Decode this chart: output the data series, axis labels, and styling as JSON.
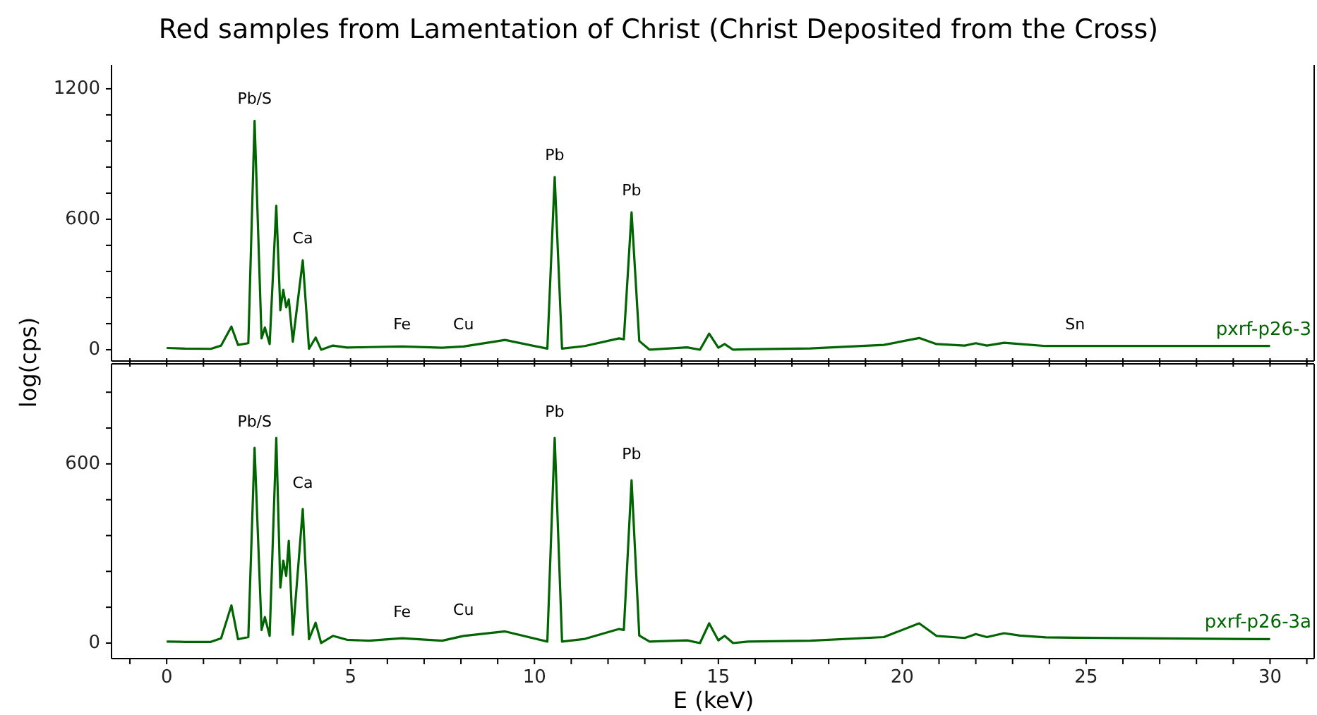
{
  "chart_data": [
    {
      "type": "line",
      "title": "Red samples from Lamentation of Christ (Christ Deposited from the Cross)",
      "ylabel": "log(cps)",
      "tick_labels": "y",
      "xlim": [
        -1.5,
        31.2
      ],
      "ylim": [
        -52,
        1310
      ],
      "xticks": [
        {
          "value": -1,
          "label": null
        },
        0,
        {
          "value": 1,
          "label": null
        },
        {
          "value": 2,
          "label": null
        },
        {
          "value": 3,
          "label": null
        },
        {
          "value": 4,
          "label": null
        },
        5,
        {
          "value": 6,
          "label": null
        },
        {
          "value": 7,
          "label": null
        },
        {
          "value": 8,
          "label": null
        },
        {
          "value": 9,
          "label": null
        },
        10,
        {
          "value": 11,
          "label": null
        },
        {
          "value": 12,
          "label": null
        },
        {
          "value": 13,
          "label": null
        },
        {
          "value": 14,
          "label": null
        },
        15,
        {
          "value": 16,
          "label": null
        },
        {
          "value": 17,
          "label": null
        },
        {
          "value": 18,
          "label": null
        },
        {
          "value": 19,
          "label": null
        },
        20,
        {
          "value": 21,
          "label": null
        },
        {
          "value": 22,
          "label": null
        },
        {
          "value": 23,
          "label": null
        },
        {
          "value": 24,
          "label": null
        },
        25,
        {
          "value": 26,
          "label": null
        },
        {
          "value": 27,
          "label": null
        },
        {
          "value": 28,
          "label": null
        },
        {
          "value": 29,
          "label": null
        },
        30,
        {
          "value": 31,
          "label": null
        }
      ],
      "yticks": [
        0,
        {
          "value": 120,
          "label": null
        },
        {
          "value": 240,
          "label": null
        },
        {
          "value": 360,
          "label": null
        },
        {
          "value": 480,
          "label": null
        },
        600,
        {
          "value": 720,
          "label": null
        },
        {
          "value": 840,
          "label": null
        },
        {
          "value": 960,
          "label": null
        },
        {
          "value": 1080,
          "label": null
        },
        1200
      ],
      "x": [
        0,
        0.5,
        1.2,
        1.48,
        1.76,
        1.94,
        2.22,
        2.39,
        2.58,
        2.67,
        2.8,
        2.98,
        3.09,
        3.17,
        3.25,
        3.32,
        3.43,
        3.7,
        3.87,
        4.05,
        4.2,
        4.52,
        4.9,
        5.5,
        6.4,
        7.49,
        8.07,
        9.2,
        10.35,
        10.55,
        10.75,
        11.37,
        12.3,
        12.43,
        12.64,
        12.85,
        13.13,
        14.15,
        14.5,
        14.75,
        15.0,
        15.17,
        15.4,
        15.8,
        17.5,
        19.5,
        20.46,
        20.93,
        21.7,
        22.0,
        22.3,
        22.77,
        23.2,
        23.9,
        24.7,
        25.8,
        30.0
      ],
      "series": [
        {
          "name": "pxrf-p26-3",
          "color": "#006400",
          "values": [
            8,
            5,
            4,
            19,
            106,
            22,
            30,
            1053,
            52,
            102,
            26,
            662,
            182,
            275,
            195,
            231,
            37,
            411,
            4,
            56,
            0,
            19,
            10,
            12,
            15,
            9,
            15,
            45,
            5,
            794,
            5,
            17,
            52,
            48,
            632,
            40,
            0,
            11,
            0,
            74,
            9,
            26,
            0,
            2,
            6,
            22,
            54,
            26,
            19,
            30,
            19,
            32,
            26,
            17,
            17,
            17,
            17
          ]
        }
      ],
      "annotations": [
        {
          "text": "Pb/S",
          "x": 2.39,
          "y": 1053
        },
        {
          "text": "Ca",
          "x": 3.7,
          "y": 411
        },
        {
          "text": "Fe",
          "x": 6.4,
          "y": 15
        },
        {
          "text": "Cu",
          "x": 8.07,
          "y": 15
        },
        {
          "text": "Pb",
          "x": 10.55,
          "y": 794
        },
        {
          "text": "Pb",
          "x": 12.64,
          "y": 632
        },
        {
          "text": "Sn",
          "x": 24.7,
          "y": 17
        }
      ]
    },
    {
      "type": "line",
      "xlabel": "E (keV)",
      "xlim": [
        -1.5,
        31.2
      ],
      "ylim": [
        -52,
        935
      ],
      "xticks": [
        {
          "value": -1,
          "label": null
        },
        0,
        {
          "value": 1,
          "label": null
        },
        {
          "value": 2,
          "label": null
        },
        {
          "value": 3,
          "label": null
        },
        {
          "value": 4,
          "label": null
        },
        5,
        {
          "value": 6,
          "label": null
        },
        {
          "value": 7,
          "label": null
        },
        {
          "value": 8,
          "label": null
        },
        {
          "value": 9,
          "label": null
        },
        10,
        {
          "value": 11,
          "label": null
        },
        {
          "value": 12,
          "label": null
        },
        {
          "value": 13,
          "label": null
        },
        {
          "value": 14,
          "label": null
        },
        15,
        {
          "value": 16,
          "label": null
        },
        {
          "value": 17,
          "label": null
        },
        {
          "value": 18,
          "label": null
        },
        {
          "value": 19,
          "label": null
        },
        20,
        {
          "value": 21,
          "label": null
        },
        {
          "value": 22,
          "label": null
        },
        {
          "value": 23,
          "label": null
        },
        {
          "value": 24,
          "label": null
        },
        25,
        {
          "value": 26,
          "label": null
        },
        {
          "value": 27,
          "label": null
        },
        {
          "value": 28,
          "label": null
        },
        {
          "value": 29,
          "label": null
        },
        30,
        {
          "value": 31,
          "label": null
        }
      ],
      "yticks": [
        0,
        {
          "value": 120,
          "label": null
        },
        {
          "value": 240,
          "label": null
        },
        {
          "value": 360,
          "label": null
        },
        {
          "value": 480,
          "label": null
        },
        600,
        {
          "value": 720,
          "label": null
        },
        {
          "value": 840,
          "label": null
        }
      ],
      "x": [
        0,
        0.5,
        1.2,
        1.48,
        1.76,
        1.94,
        2.22,
        2.39,
        2.58,
        2.67,
        2.8,
        2.98,
        3.09,
        3.17,
        3.25,
        3.32,
        3.43,
        3.7,
        3.87,
        4.05,
        4.2,
        4.52,
        4.9,
        5.5,
        6.4,
        7.49,
        8.07,
        9.2,
        10.35,
        10.55,
        10.75,
        11.37,
        12.3,
        12.43,
        12.64,
        12.85,
        13.13,
        14.15,
        14.5,
        14.75,
        15.0,
        15.17,
        15.4,
        15.8,
        17.5,
        19.5,
        20.46,
        20.93,
        21.7,
        22.0,
        22.3,
        22.77,
        23.2,
        23.9,
        24.7,
        25.8,
        30.0
      ],
      "series": [
        {
          "name": "pxrf-p26-3a",
          "color": "#006400",
          "values": [
            5,
            4,
            4,
            16,
            126,
            13,
            20,
            654,
            44,
            87,
            24,
            687,
            186,
            276,
            225,
            342,
            28,
            449,
            13,
            68,
            0,
            24,
            11,
            8,
            16,
            8,
            24,
            39,
            5,
            687,
            5,
            14,
            47,
            44,
            545,
            25,
            5,
            9,
            0,
            66,
            9,
            24,
            0,
            5,
            8,
            20,
            66,
            24,
            17,
            30,
            20,
            33,
            25,
            19,
            18,
            17,
            13
          ]
        }
      ],
      "annotations": [
        {
          "text": "Pb/S",
          "x": 2.39,
          "y": 654
        },
        {
          "text": "Ca",
          "x": 3.7,
          "y": 449
        },
        {
          "text": "Fe",
          "x": 6.4,
          "y": 16
        },
        {
          "text": "Cu",
          "x": 8.07,
          "y": 24
        },
        {
          "text": "Pb",
          "x": 10.55,
          "y": 687
        },
        {
          "text": "Pb",
          "x": 12.64,
          "y": 545
        }
      ]
    }
  ]
}
